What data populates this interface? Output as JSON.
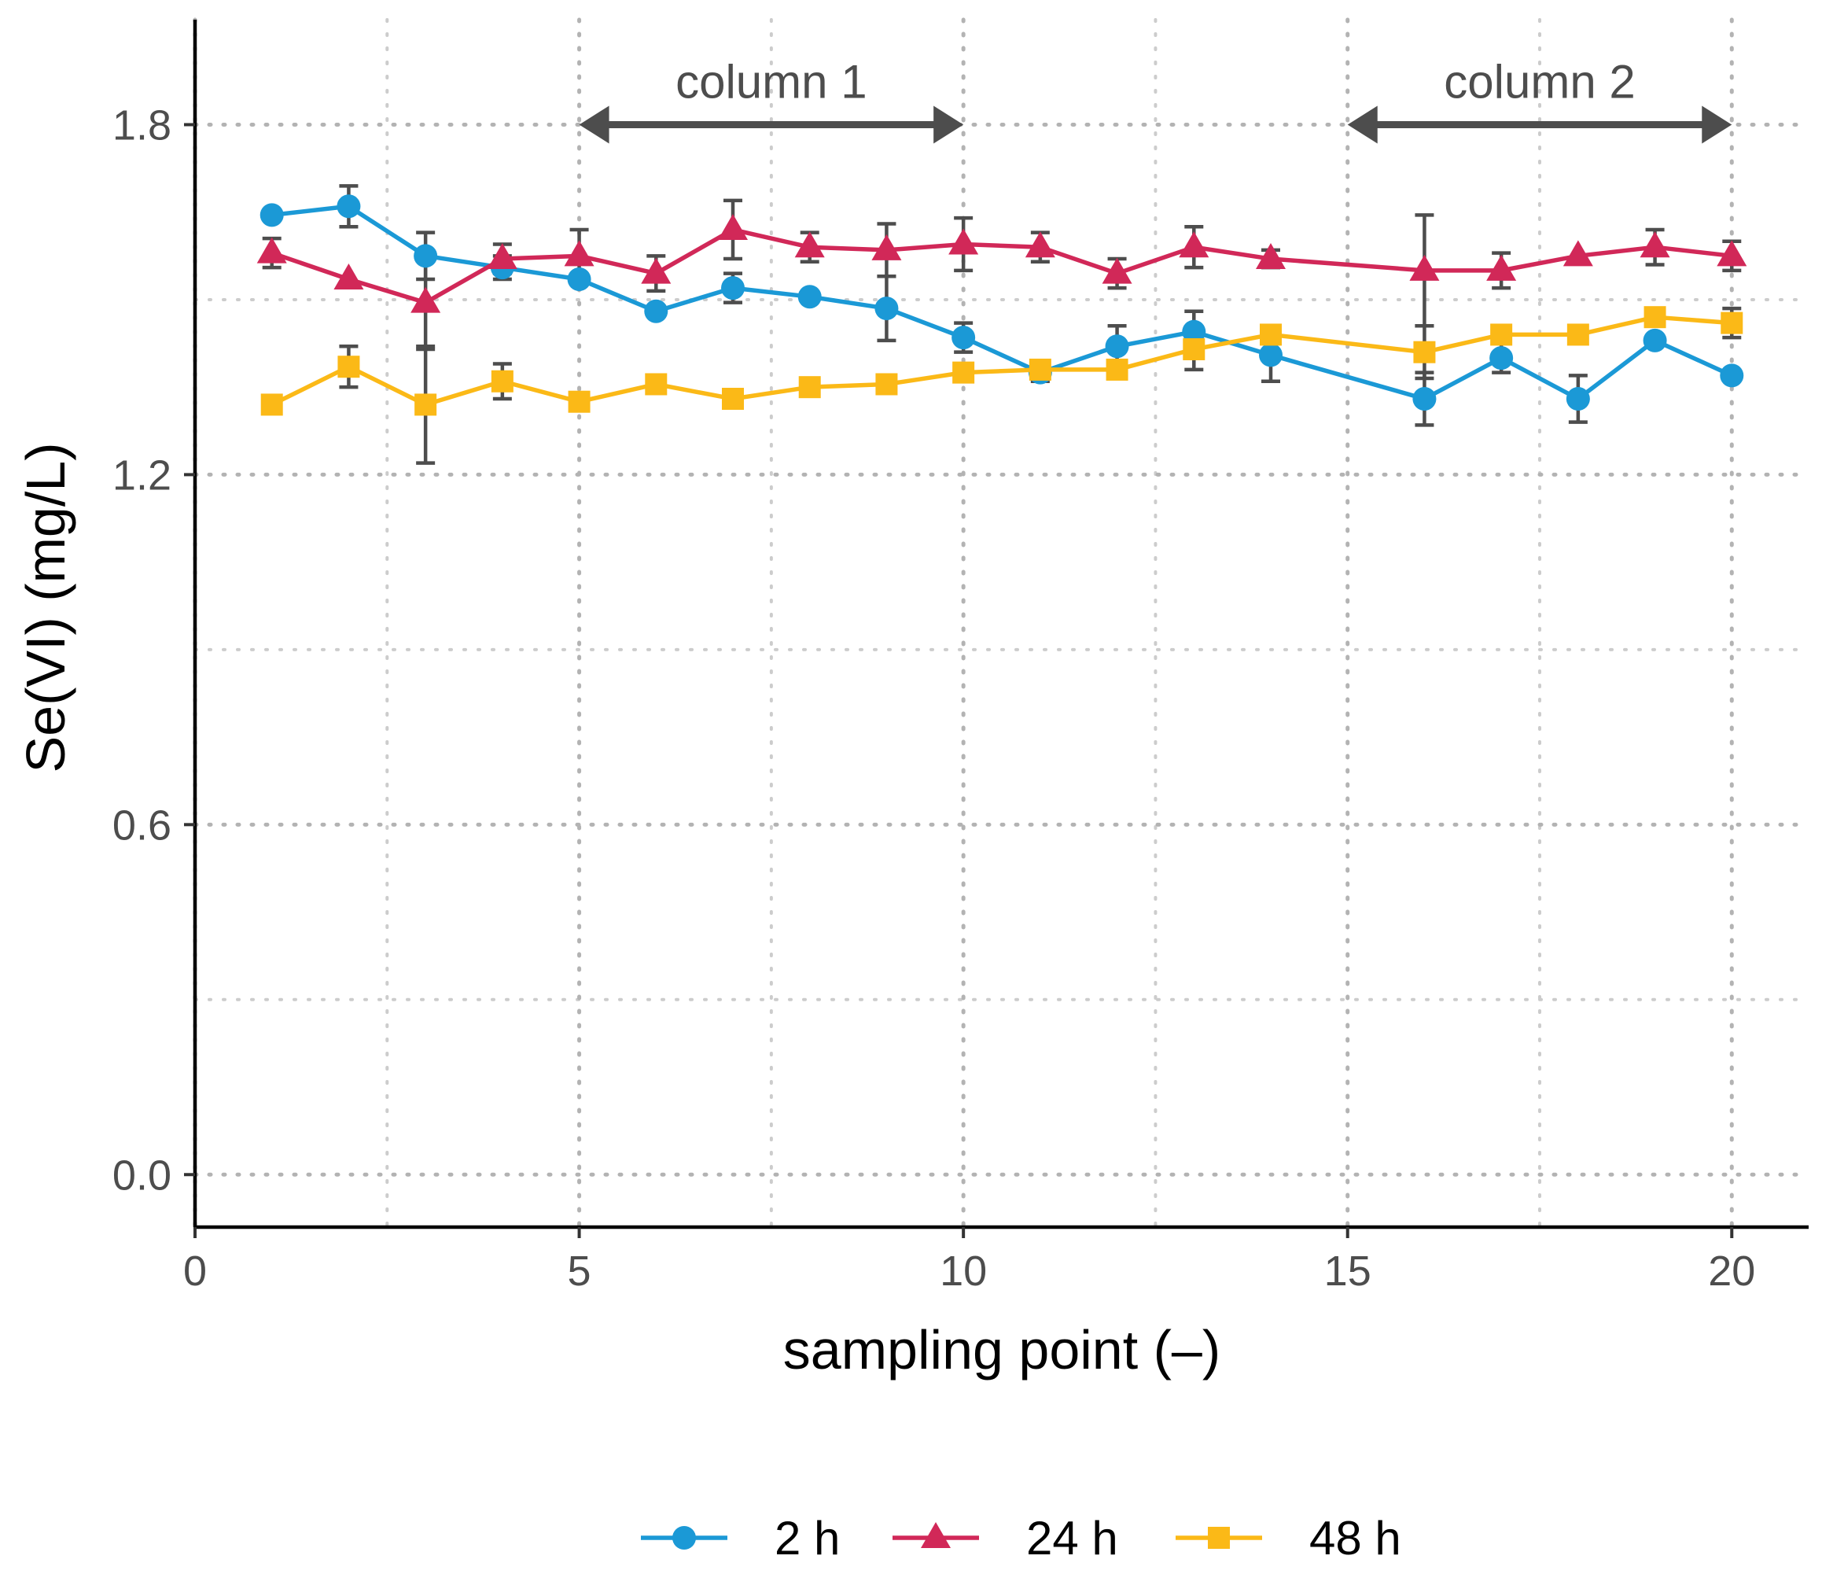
{
  "chart_data": {
    "type": "line",
    "xlabel": "sampling point (–)",
    "ylabel": "Se(VI) (mg/L)",
    "xlim": [
      0,
      21
    ],
    "ylim": [
      -0.09,
      1.98
    ],
    "x_ticks": [
      0,
      5,
      10,
      15,
      20
    ],
    "x_tick_labels": [
      "0",
      "5",
      "10",
      "15",
      "20"
    ],
    "y_ticks": [
      0,
      0.6,
      1.2,
      1.8
    ],
    "y_tick_labels": [
      "0.0",
      "0.6",
      "1.2",
      "1.8"
    ],
    "grid": true,
    "legend_position": "bottom",
    "x": [
      1,
      2,
      3,
      4,
      5,
      6,
      7,
      8,
      9,
      10,
      11,
      12,
      13,
      14,
      16,
      17,
      18,
      19,
      20
    ],
    "series": [
      {
        "name": "2 h",
        "color": "#1b99d6",
        "marker": "circle",
        "values": [
          1.645,
          1.66,
          1.575,
          1.555,
          1.535,
          1.48,
          1.52,
          1.505,
          1.485,
          1.435,
          1.375,
          1.42,
          1.445,
          1.405,
          1.33,
          1.4,
          1.33,
          1.43,
          1.37
        ],
        "errors": [
          0.0,
          0.035,
          0.04,
          0.02,
          0.0,
          0.0,
          0.025,
          0.0,
          0.055,
          0.025,
          0.015,
          0.035,
          0.035,
          0.045,
          0.045,
          0.025,
          0.04,
          0.0,
          0.0
        ]
      },
      {
        "name": "24 h",
        "color": "#d12858",
        "marker": "triangle",
        "values": [
          1.58,
          1.535,
          1.495,
          1.57,
          1.575,
          1.545,
          1.62,
          1.59,
          1.585,
          1.595,
          1.59,
          1.545,
          1.59,
          1.57,
          1.55,
          1.55,
          1.575,
          1.59,
          1.575
        ],
        "errors": [
          0.025,
          0.0,
          0.08,
          0.025,
          0.045,
          0.03,
          0.05,
          0.025,
          0.045,
          0.045,
          0.025,
          0.025,
          0.035,
          0.015,
          0.095,
          0.03,
          0.0,
          0.03,
          0.025
        ]
      },
      {
        "name": "48 h",
        "color": "#fbb917",
        "marker": "square",
        "values": [
          1.32,
          1.385,
          1.32,
          1.36,
          1.325,
          1.355,
          1.33,
          1.35,
          1.355,
          1.375,
          1.38,
          1.38,
          1.415,
          1.44,
          1.41,
          1.44,
          1.44,
          1.47,
          1.46
        ],
        "errors": [
          0.0,
          0.035,
          0.1,
          0.03,
          0.0,
          0.0,
          0.0,
          0.0,
          0.0,
          0.0,
          0.0,
          0.0,
          0.035,
          0.0,
          0.045,
          0.0,
          0.0,
          0.0,
          0.025
        ]
      }
    ],
    "annotations": [
      {
        "label": "column 1",
        "x_start": 5,
        "x_end": 10,
        "y": 1.8
      },
      {
        "label": "column 2",
        "x_start": 15,
        "x_end": 20,
        "y": 1.8
      }
    ]
  }
}
